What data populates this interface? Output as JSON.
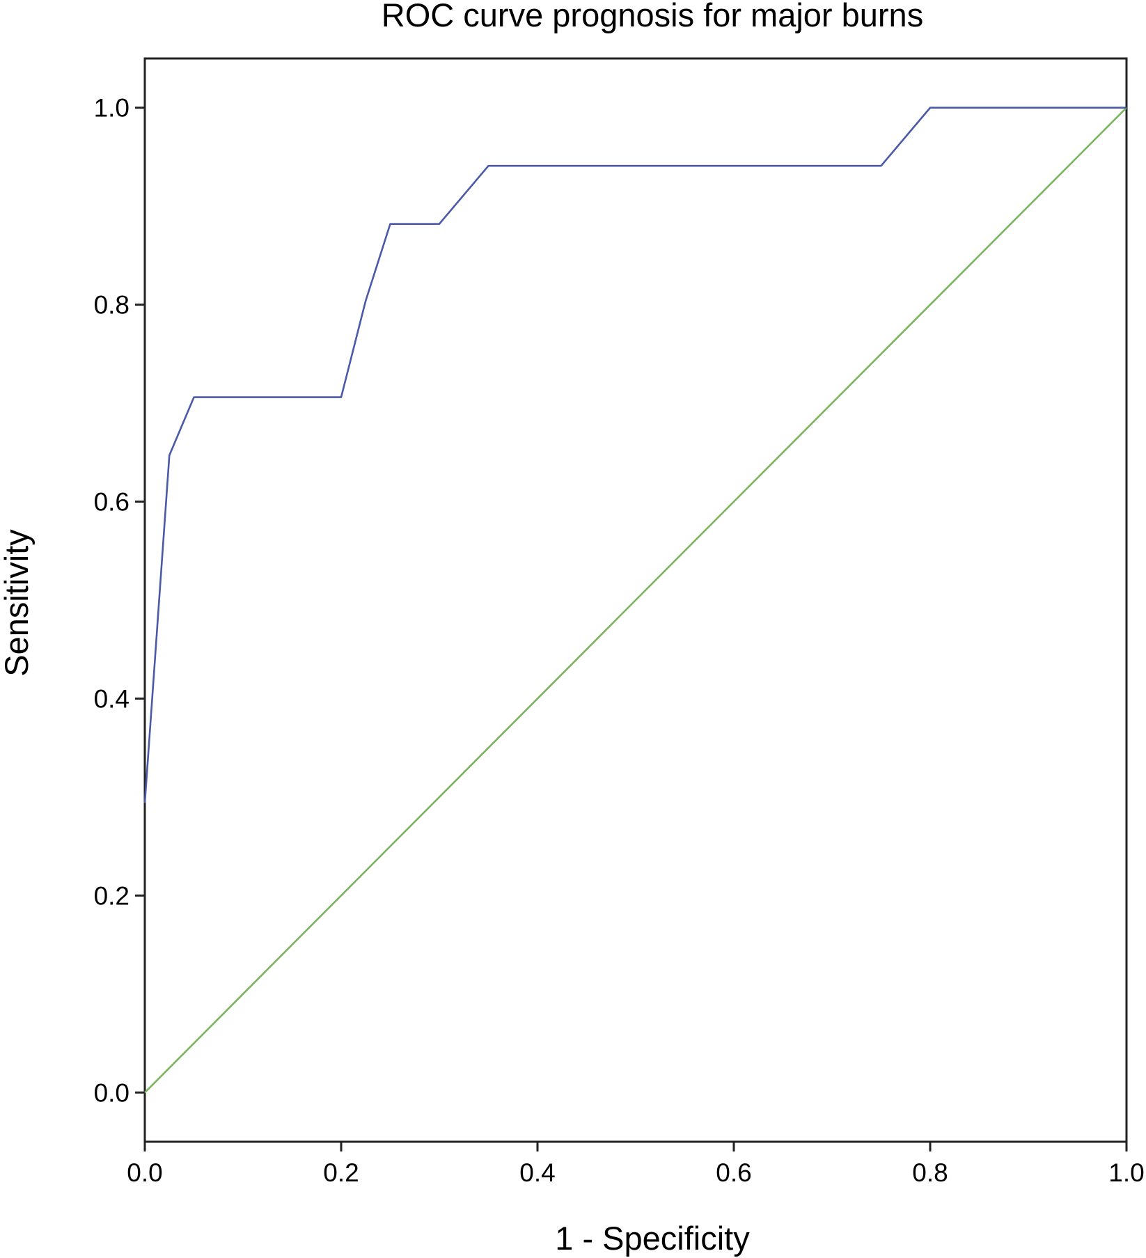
{
  "chart_data": {
    "type": "line",
    "title": "ROC curve prognosis for major burns",
    "xlabel": "1 - Specificity",
    "ylabel": "Sensitivity",
    "xlim": [
      0.0,
      1.0
    ],
    "ylim": [
      -0.05,
      1.05
    ],
    "x_ticks": [
      "0.0",
      "0.2",
      "0.4",
      "0.6",
      "0.8",
      "1.0"
    ],
    "y_ticks": [
      "0.0",
      "0.2",
      "0.4",
      "0.6",
      "0.8",
      "1.0"
    ],
    "grid": false,
    "legend": "none",
    "series": [
      {
        "color": "#4a5aa8",
        "x": [
          0.0,
          0.025,
          0.05,
          0.2,
          0.225,
          0.25,
          0.3,
          0.35,
          0.75,
          0.8,
          1.0
        ],
        "y": [
          0.294,
          0.647,
          0.706,
          0.706,
          0.804,
          0.882,
          0.882,
          0.941,
          0.941,
          1.0,
          1.0
        ]
      },
      {
        "color": "#7bb45e",
        "x": [
          0.0,
          1.0
        ],
        "y": [
          0.0,
          1.0
        ]
      }
    ]
  }
}
